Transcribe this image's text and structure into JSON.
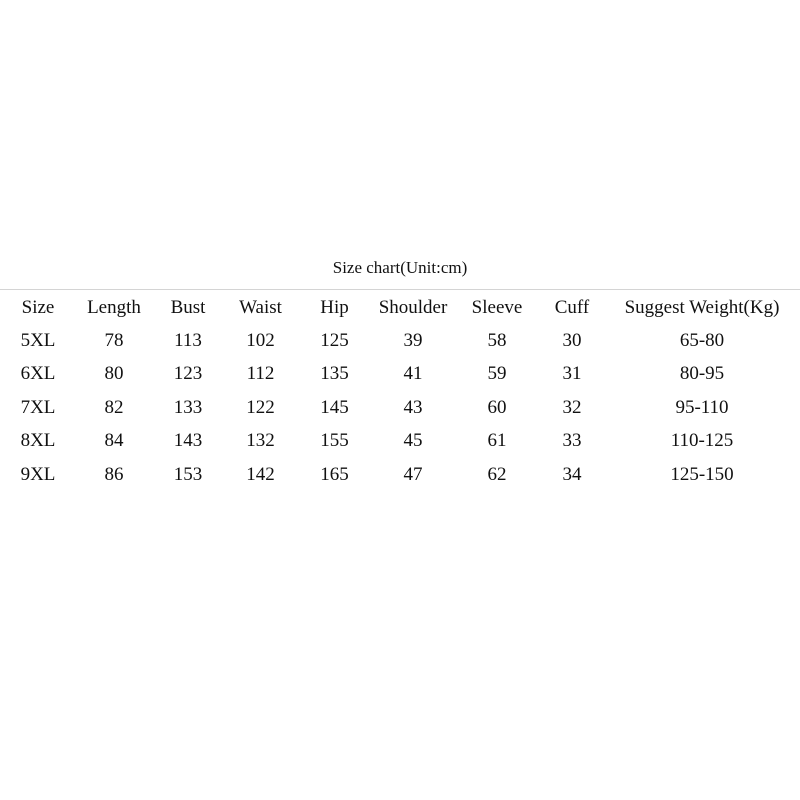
{
  "title": "Size chart(Unit:cm)",
  "columns": [
    "Size",
    "Length",
    "Bust",
    "Waist",
    "Hip",
    "Shoulder",
    "Sleeve",
    "Cuff",
    "Suggest Weight(Kg)"
  ],
  "rows": [
    [
      "5XL",
      "78",
      "113",
      "102",
      "125",
      "39",
      "58",
      "30",
      "65-80"
    ],
    [
      "6XL",
      "80",
      "123",
      "112",
      "135",
      "41",
      "59",
      "31",
      "80-95"
    ],
    [
      "7XL",
      "82",
      "133",
      "122",
      "145",
      "43",
      "60",
      "32",
      "95-110"
    ],
    [
      "8XL",
      "84",
      "143",
      "132",
      "155",
      "45",
      "61",
      "33",
      "110-125"
    ],
    [
      "9XL",
      "86",
      "153",
      "142",
      "165",
      "47",
      "62",
      "34",
      "125-150"
    ]
  ]
}
